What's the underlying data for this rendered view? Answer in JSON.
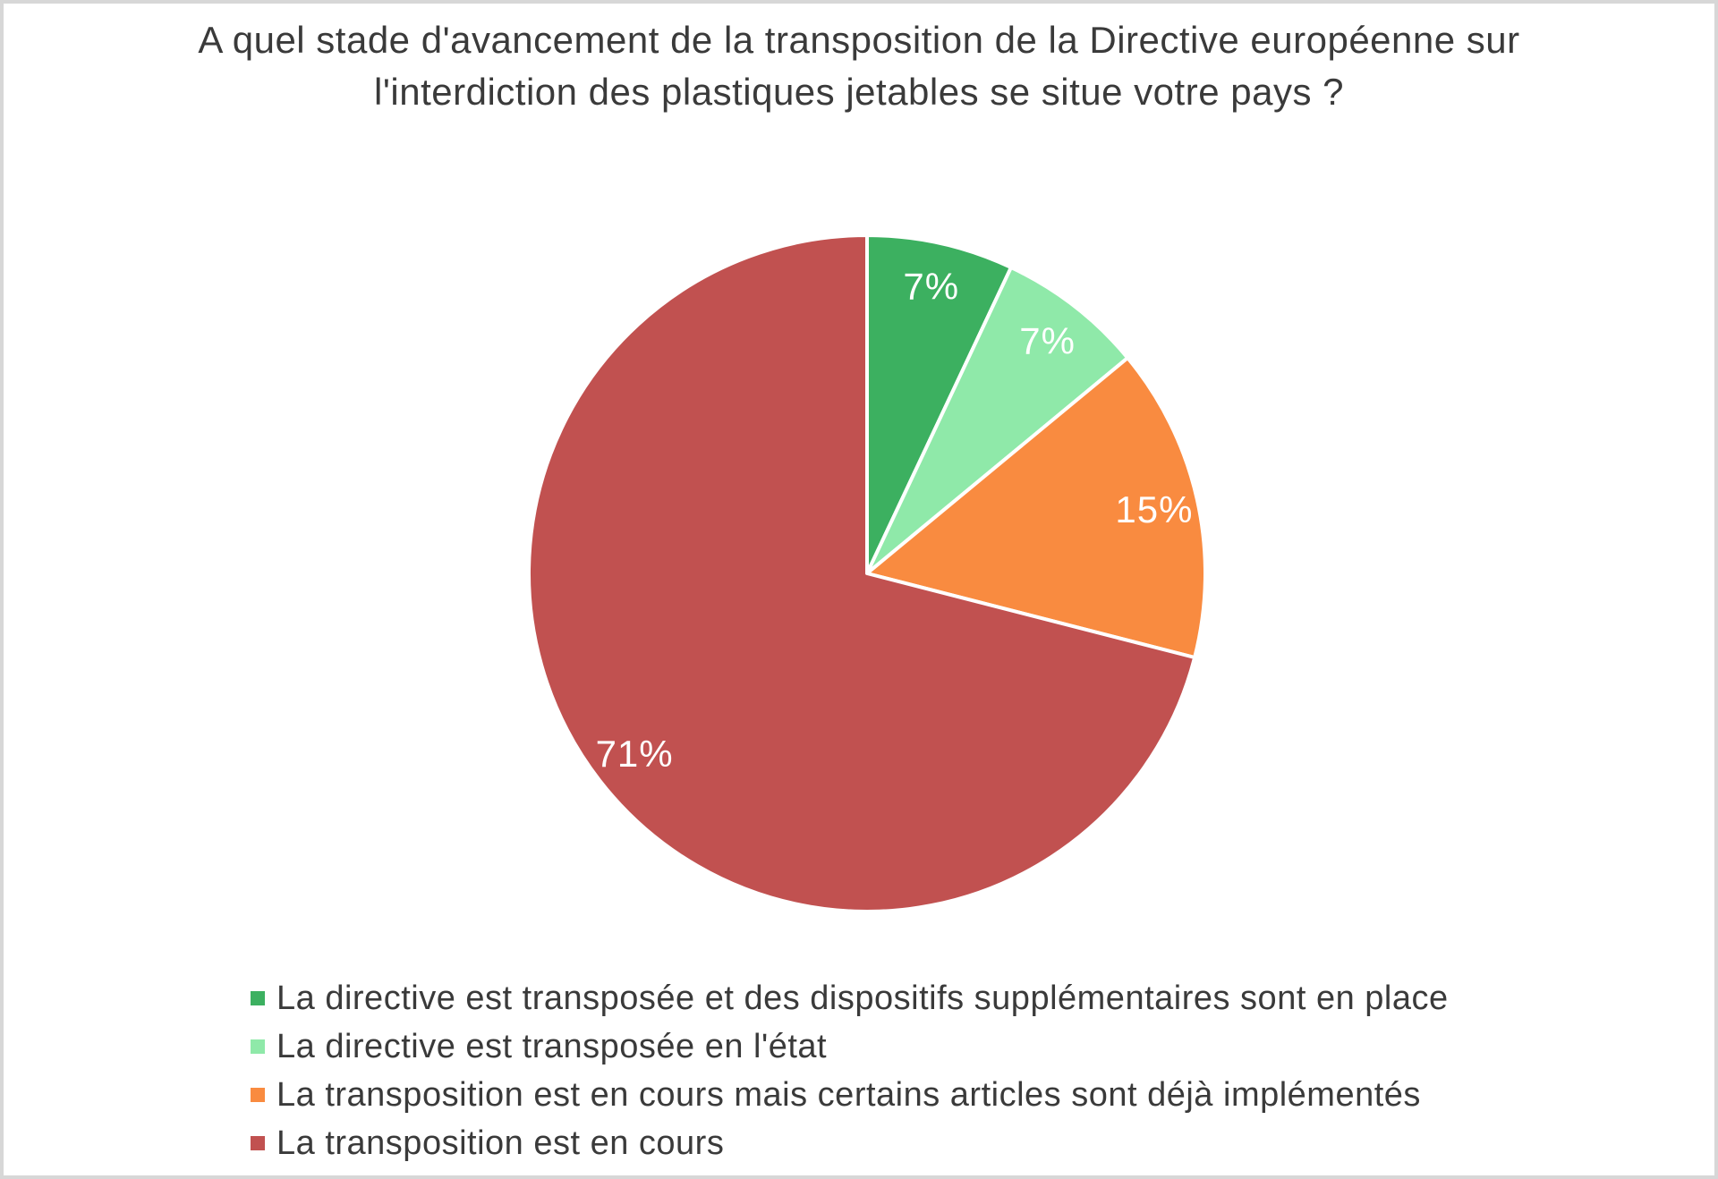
{
  "frame": {
    "background_color": "#ffffff",
    "border_color": "#d7d7d7"
  },
  "chart_data": {
    "type": "pie",
    "title": "A quel stade d'avancement de la transposition de la Directive européenne sur l'interdiction des plastiques jetables se situe votre pays ?",
    "direction": "clockwise",
    "start_angle_deg": 0,
    "legend_position": "bottom",
    "data_label_color": "#ffffff",
    "title_color": "#3a3a3a",
    "slices": [
      {
        "label": "La directive est transposée et des dispositifs supplémentaires sont en place",
        "value": 7,
        "display": "7%",
        "color": "#3CB060"
      },
      {
        "label": "La directive est transposée en l'état",
        "value": 7,
        "display": "7%",
        "color": "#8FE9A9"
      },
      {
        "label": "La transposition est en cours mais certains articles sont déjà implémentés",
        "value": 15,
        "display": "15%",
        "color": "#F98B40"
      },
      {
        "label": "La transposition est en cours",
        "value": 71,
        "display": "71%",
        "color": "#C15150"
      }
    ]
  }
}
